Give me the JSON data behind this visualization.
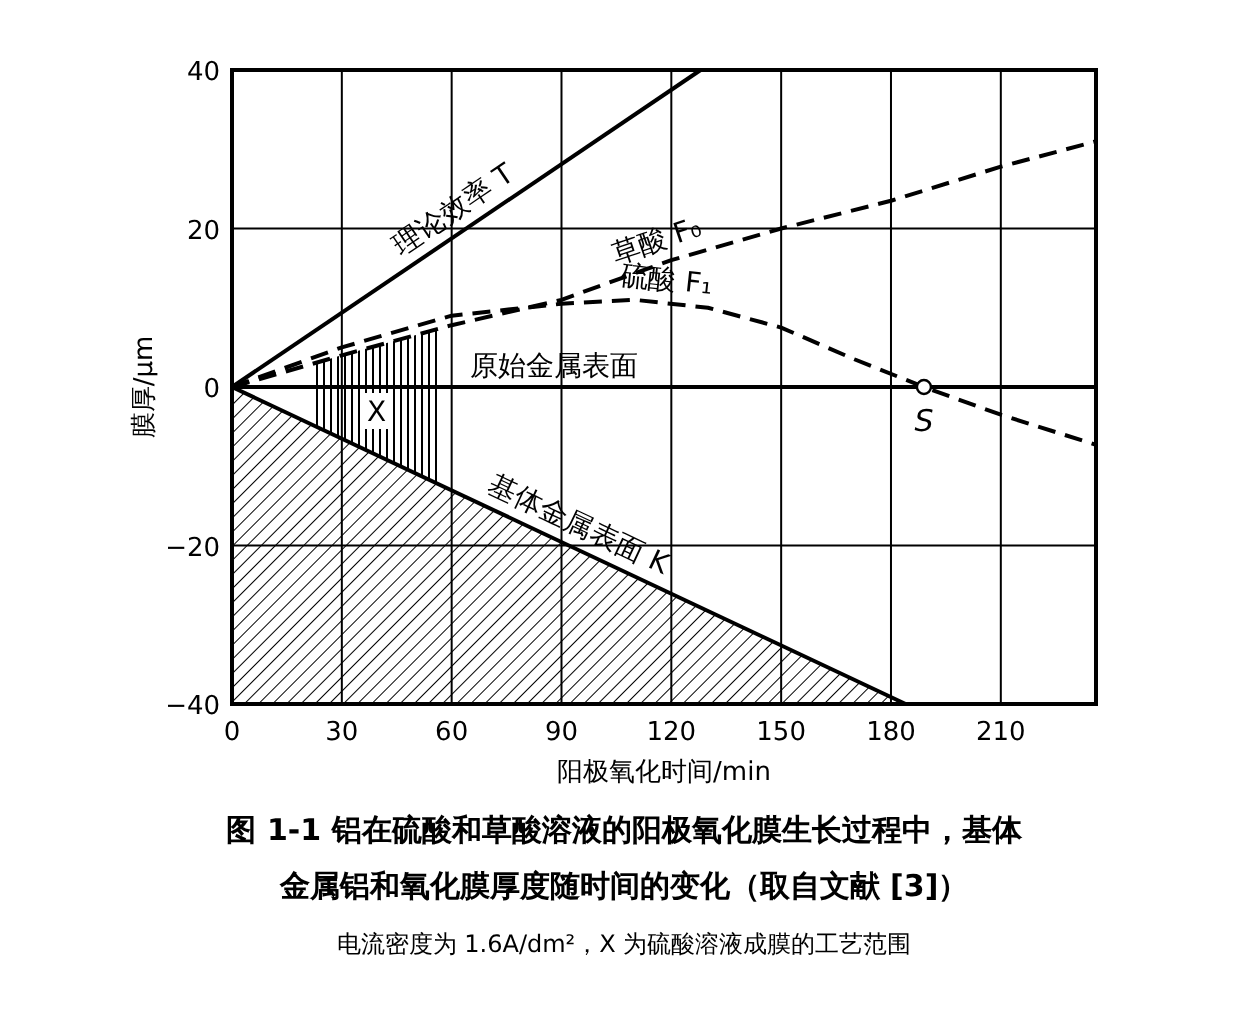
{
  "chart_data": {
    "type": "line",
    "xlabel": "阳极氧化时间/min",
    "ylabel": "膜厚/μm",
    "xlim": [
      0,
      236
    ],
    "ylim": [
      -40,
      40
    ],
    "xticks": [
      0,
      30,
      60,
      90,
      120,
      150,
      180,
      210
    ],
    "yticks": [
      40,
      20,
      0,
      -20,
      -40
    ],
    "grid": true,
    "series": [
      {
        "name": "理论效率 T",
        "color": "#000000",
        "line_style": "solid",
        "x": [
          0,
          128
        ],
        "values": [
          0,
          40
        ]
      },
      {
        "name": "草酸 F₀",
        "color": "#000000",
        "line_style": "dashed",
        "x": [
          0,
          30,
          60,
          90,
          120,
          150,
          180,
          210,
          236
        ],
        "values": [
          0,
          4,
          7.8,
          11,
          16,
          20,
          23.5,
          27.8,
          31
        ]
      },
      {
        "name": "硫酸 F₁",
        "color": "#000000",
        "line_style": "dashed",
        "x": [
          0,
          30,
          60,
          90,
          110,
          130,
          150,
          170,
          189,
          210,
          236
        ],
        "values": [
          0,
          5,
          9,
          10.5,
          11,
          10,
          7.5,
          3.5,
          0,
          -3.5,
          -7.3
        ]
      },
      {
        "name": "基体金属表面 K",
        "type": "area",
        "color": "#000000",
        "line_style": "solid",
        "x": [
          0,
          184
        ],
        "values": [
          0,
          -40
        ]
      }
    ],
    "ref_lines": [
      {
        "axis": "y",
        "value": 0,
        "label": "原始金属表面",
        "color": "#000000"
      }
    ],
    "bands": [
      {
        "axis": "x",
        "from": 22,
        "to": 57,
        "label": "X"
      }
    ],
    "annotations": [
      {
        "text": "S",
        "x": 189,
        "y": 0
      },
      "图 1-1  铝在硫酸和草酸溶液的阳极氧化膜生长过程中，基体",
      "金属铝和氧化膜厚度随时间的变化（取自文献 [3]）",
      "电流密度为 1.6A/dm²，X 为硫酸溶液成膜的工艺范围"
    ]
  }
}
